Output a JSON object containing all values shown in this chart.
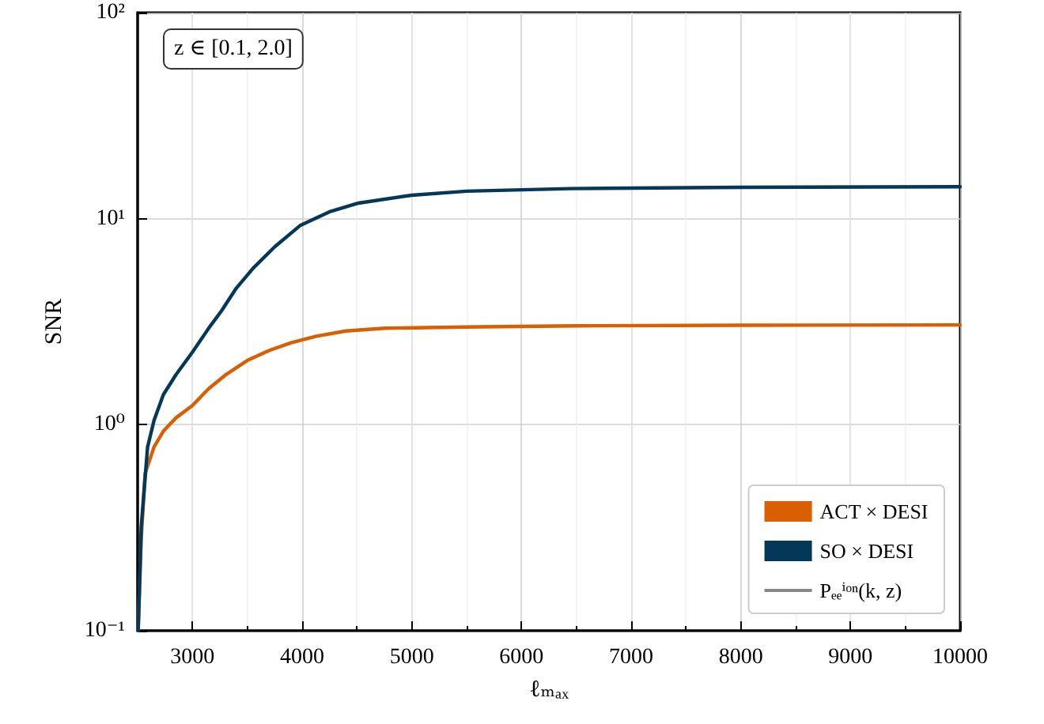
{
  "chart_data": {
    "type": "line",
    "xlabel": "ℓₘₐₓ",
    "ylabel": "SNR",
    "annotations": [
      "z ∈ [0.1, 2.0]"
    ],
    "xlim": [
      2500,
      10000
    ],
    "xticks": [
      3000,
      4000,
      5000,
      6000,
      7000,
      8000,
      9000,
      10000
    ],
    "ylim": [
      0.1,
      100
    ],
    "yticks": [
      {
        "value": 0.1,
        "label": "10⁻¹"
      },
      {
        "value": 1,
        "label": "10⁰"
      },
      {
        "value": 10,
        "label": "10¹"
      },
      {
        "value": 100,
        "label": "10²"
      }
    ],
    "log": "y",
    "grid": true,
    "legend": "bottom right",
    "marker": "none",
    "line_style": "solid",
    "series": [
      {
        "name": "ACT × DESI",
        "color": "#d95f02",
        "x": [
          2505,
          2533,
          2568,
          2650,
          2735,
          2850,
          3000,
          3150,
          3312,
          3500,
          3698,
          3900,
          4130,
          4400,
          4755,
          5477,
          6500,
          8000,
          10000
        ],
        "values": [
          0.1,
          0.28,
          0.58,
          0.78,
          0.93,
          1.08,
          1.24,
          1.5,
          1.76,
          2.05,
          2.29,
          2.5,
          2.69,
          2.85,
          2.94,
          2.98,
          3.02,
          3.04,
          3.05
        ]
      },
      {
        "name": "SO × DESI",
        "color": "#033858",
        "x": [
          2505,
          2533,
          2591,
          2650,
          2735,
          2850,
          3000,
          3150,
          3265,
          3400,
          3553,
          3750,
          3986,
          4250,
          4514,
          5000,
          5500,
          6440,
          8000,
          10000
        ],
        "values": [
          0.1,
          0.32,
          0.78,
          1.05,
          1.4,
          1.75,
          2.25,
          2.95,
          3.57,
          4.6,
          5.75,
          7.3,
          9.3,
          10.8,
          11.9,
          13.0,
          13.6,
          14.0,
          14.2,
          14.3
        ]
      },
      {
        "name": "Pₑₑⁱᵒⁿ(k, z)",
        "color": "#888888"
      }
    ]
  }
}
